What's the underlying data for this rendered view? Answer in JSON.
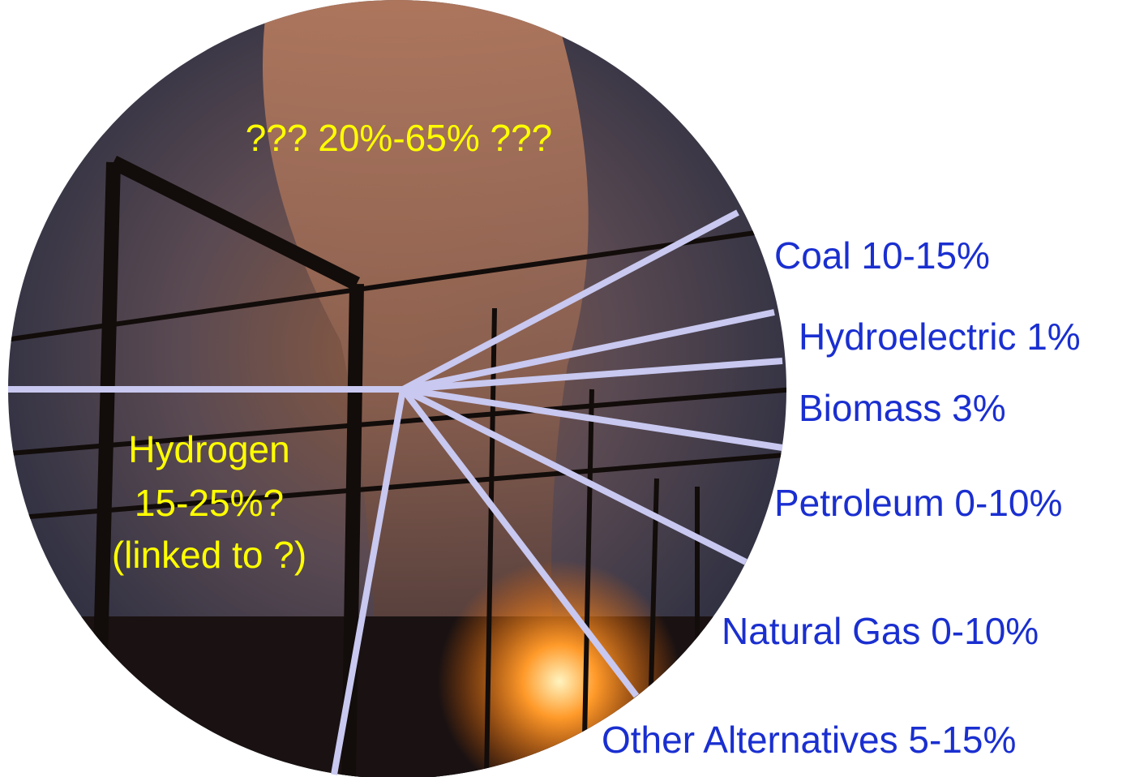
{
  "center_label": "??? 20%-65% ???",
  "hydrogen_label": [
    "Hydrogen",
    "15-25%?",
    "(linked to ?)"
  ],
  "slices": [
    "Coal 10-15%",
    "Hydroelectric 1%",
    "Biomass 3%",
    "Petroleum 0-10%",
    "Natural Gas 0-10%",
    "Other Alternatives 5-15%"
  ]
}
